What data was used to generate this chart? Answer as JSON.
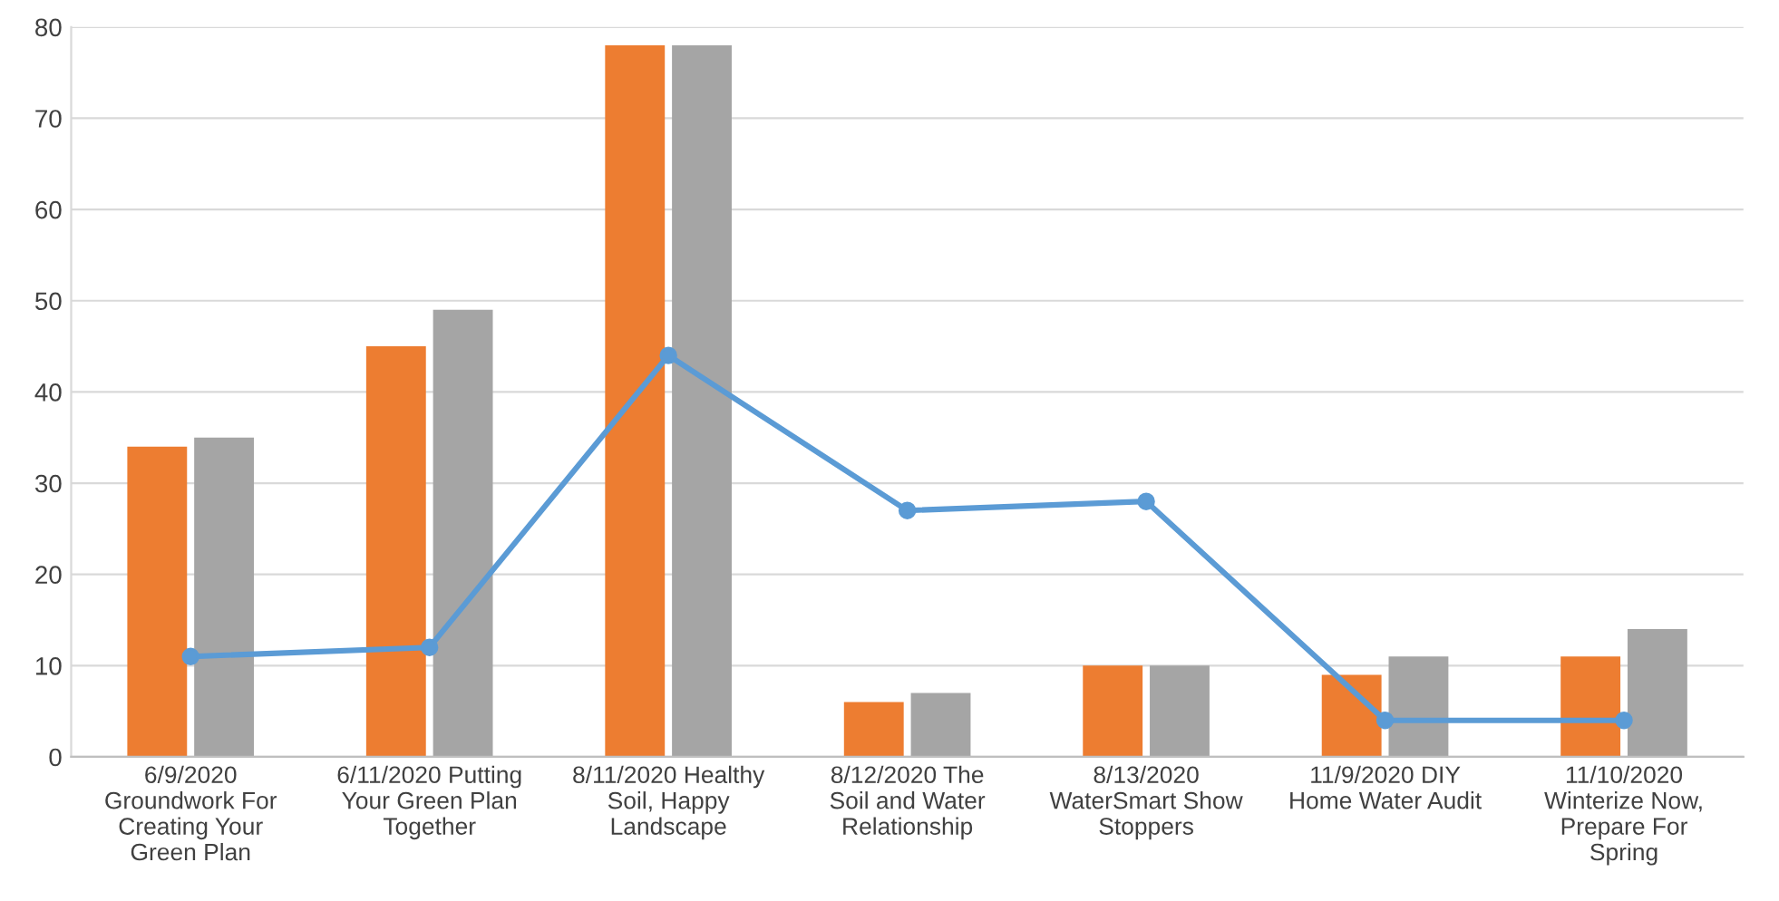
{
  "chart_data": {
    "type": "bar",
    "categories": [
      "6/9/2020 Groundwork For Creating Your Green Plan",
      "6/11/2020 Putting Your Green Plan Together",
      "8/11/2020 Healthy Soil, Happy Landscape",
      "8/12/2020 The Soil and Water Relationship",
      "8/13/2020 WaterSmart Show Stoppers",
      "11/9/2020 DIY Home Water Audit",
      "11/10/2020 Winterize Now, Prepare For Spring"
    ],
    "series": [
      {
        "color": "#ed7d31",
        "values": [
          34,
          45,
          78,
          6,
          10,
          9,
          11
        ]
      },
      {
        "color": "#a5a5a5",
        "values": [
          35,
          49,
          78,
          7,
          10,
          11,
          14
        ]
      },
      {
        "type": "line",
        "color": "#5b9bd5",
        "marker": "circle",
        "values": [
          11,
          12,
          44,
          27,
          28,
          4,
          4
        ]
      }
    ],
    "ylim": [
      0,
      80
    ],
    "yticks": [
      0,
      10,
      20,
      30,
      40,
      50,
      60,
      70,
      80
    ],
    "grid": "y",
    "legend": false
  }
}
